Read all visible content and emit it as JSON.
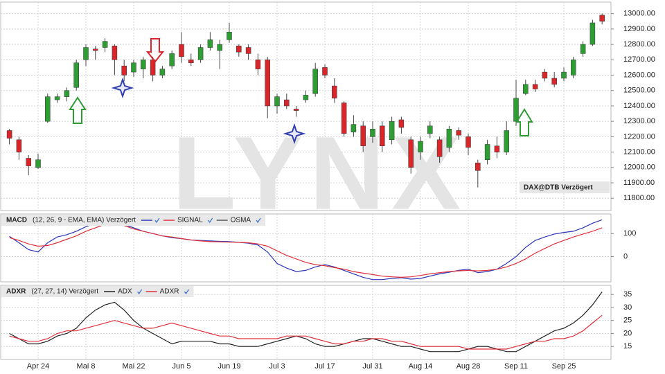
{
  "chart_data": [
    {
      "type": "candlestick",
      "label": "DAX@DTB Verzögert",
      "watermark": "LYNX",
      "up_color": "#2e9e34",
      "down_color": "#d9262b",
      "grid": true,
      "ylim": [
        11720,
        13075
      ],
      "yticks": [
        {
          "value": 11800,
          "label": "11800.00"
        },
        {
          "value": 11900,
          "label": "11900.00"
        },
        {
          "value": 12000,
          "label": "12000.00"
        },
        {
          "value": 12100,
          "label": "12100.00"
        },
        {
          "value": 12200,
          "label": "12200.00"
        },
        {
          "value": 12300,
          "label": "12300.00"
        },
        {
          "value": 12400,
          "label": "12400.00"
        },
        {
          "value": 12500,
          "label": "12500.00"
        },
        {
          "value": 12600,
          "label": "12600.00"
        },
        {
          "value": 12700,
          "label": "12700.00"
        },
        {
          "value": 12800,
          "label": "12800.00"
        },
        {
          "value": 12900,
          "label": "12900.00"
        },
        {
          "value": 13000,
          "label": "13000.00"
        }
      ],
      "open": [
        12240,
        12180,
        12060,
        12000,
        12300,
        12440,
        12460,
        12520,
        12700,
        12770,
        12780,
        12790,
        12660,
        12620,
        12640,
        12700,
        12600,
        12660,
        12800,
        12700,
        12700,
        12780,
        12760,
        12830,
        12790,
        12780,
        12700,
        12700,
        12400,
        12440,
        12380,
        12440,
        12480,
        12650,
        12530,
        12420,
        12230,
        12270,
        12200,
        12270,
        12180,
        12310,
        12180,
        12100,
        12220,
        12180,
        12130,
        12240,
        12200,
        12030,
        12050,
        12140,
        12100,
        12300,
        12480,
        12540,
        12620,
        12580,
        12580,
        12600,
        12740,
        12800,
        12990
      ],
      "high": [
        12250,
        12200,
        12080,
        12090,
        12480,
        12480,
        12520,
        12700,
        12800,
        12790,
        12840,
        12800,
        12700,
        12700,
        12720,
        12720,
        12660,
        12760,
        12880,
        12740,
        12800,
        12880,
        12830,
        12940,
        12800,
        12800,
        12740,
        12720,
        12480,
        12480,
        12400,
        12500,
        12680,
        12670,
        12580,
        12430,
        12340,
        12300,
        12300,
        12300,
        12330,
        12330,
        12200,
        12200,
        12300,
        12200,
        12270,
        12260,
        12220,
        12050,
        12180,
        12200,
        12300,
        12570,
        12570,
        12570,
        12640,
        12620,
        12650,
        12720,
        12820,
        12960,
        13000
      ],
      "low": [
        12150,
        12050,
        11950,
        11990,
        12290,
        12420,
        12430,
        12500,
        12660,
        12700,
        12750,
        12600,
        12560,
        12590,
        12580,
        12560,
        12580,
        12640,
        12680,
        12660,
        12680,
        12760,
        12640,
        12810,
        12720,
        12700,
        12600,
        12320,
        12350,
        12380,
        12330,
        12420,
        12460,
        12580,
        12420,
        12200,
        12200,
        12100,
        12160,
        12100,
        12150,
        12220,
        11960,
        12050,
        12190,
        12030,
        12100,
        12180,
        12080,
        11870,
        12020,
        12060,
        12080,
        12270,
        12470,
        12490,
        12560,
        12520,
        12560,
        12580,
        12720,
        12790,
        12930
      ],
      "close": [
        12190,
        12100,
        12010,
        12050,
        12460,
        12460,
        12500,
        12680,
        12780,
        12760,
        12820,
        12700,
        12600,
        12680,
        12700,
        12600,
        12640,
        12740,
        12720,
        12680,
        12780,
        12830,
        12800,
        12880,
        12750,
        12740,
        12640,
        12400,
        12460,
        12400,
        12370,
        12470,
        12640,
        12600,
        12450,
        12220,
        12280,
        12140,
        12250,
        12140,
        12300,
        12260,
        12000,
        12170,
        12270,
        12070,
        12250,
        12210,
        12130,
        11980,
        12150,
        12100,
        12240,
        12450,
        12540,
        12510,
        12580,
        12540,
        12620,
        12700,
        12800,
        12940,
        12950
      ]
    },
    {
      "type": "line",
      "title": "MACD",
      "subtitle": "(12, 26, 9 - EMA, EMA) Verzögert",
      "grid": true,
      "ylim": [
        -110,
        185
      ],
      "yticks": [
        0,
        100
      ],
      "series": [
        {
          "color": "#2a35b8",
          "values": [
            88,
            60,
            30,
            20,
            60,
            85,
            95,
            110,
            130,
            145,
            150,
            150,
            140,
            125,
            110,
            100,
            90,
            82,
            78,
            72,
            70,
            68,
            66,
            65,
            62,
            58,
            50,
            20,
            -30,
            -50,
            -65,
            -60,
            -45,
            -35,
            -45,
            -60,
            -75,
            -90,
            -100,
            -100,
            -95,
            -92,
            -98,
            -95,
            -85,
            -75,
            -68,
            -60,
            -55,
            -70,
            -65,
            -55,
            -30,
            0,
            40,
            70,
            85,
            98,
            105,
            110,
            125,
            145,
            160
          ]
        },
        {
          "name": "SIGNAL",
          "color": "#e0303a",
          "values": [
            82,
            70,
            55,
            45,
            48,
            60,
            75,
            90,
            110,
            125,
            140,
            145,
            135,
            120,
            110,
            100,
            90,
            85,
            78,
            72,
            68,
            65,
            64,
            63,
            62,
            60,
            55,
            45,
            25,
            5,
            -10,
            -25,
            -35,
            -40,
            -48,
            -55,
            -65,
            -72,
            -78,
            -85,
            -88,
            -90,
            -88,
            -82,
            -75,
            -70,
            -65,
            -62,
            -60,
            -62,
            -60,
            -55,
            -45,
            -30,
            -10,
            15,
            35,
            55,
            70,
            85,
            98,
            110,
            125
          ]
        },
        {
          "name": "OSMA",
          "color": "#555555"
        }
      ]
    },
    {
      "type": "line",
      "title": "ADXR",
      "subtitle": "(27, 27, 14) Verzögert",
      "grid": true,
      "ylim": [
        10,
        38.5
      ],
      "yticks": [
        15,
        20,
        25,
        30,
        35
      ],
      "categories": [
        null,
        null,
        null,
        "Apr 24",
        null,
        null,
        null,
        null,
        "Mai 8",
        null,
        null,
        null,
        null,
        "Mai 22",
        null,
        null,
        null,
        null,
        "Jun 5",
        null,
        null,
        null,
        null,
        "Jun 19",
        null,
        null,
        null,
        null,
        "Jul 3",
        null,
        null,
        null,
        null,
        "Jul 17",
        null,
        null,
        null,
        null,
        "Jul 31",
        null,
        null,
        null,
        null,
        "Aug 14",
        null,
        null,
        null,
        null,
        "Aug 28",
        null,
        null,
        null,
        null,
        "Sep 11",
        null,
        null,
        null,
        null,
        "Sep 25",
        null,
        null,
        null,
        null
      ],
      "series": [
        {
          "name": "ADX",
          "color": "#222222",
          "values": [
            20,
            18,
            16,
            16,
            17,
            19,
            20,
            22,
            26,
            29,
            31,
            32,
            29,
            25,
            22,
            20,
            18,
            16,
            17,
            17,
            17,
            17,
            16,
            16,
            15,
            15,
            15,
            16,
            17,
            18,
            19,
            18,
            16,
            15,
            15,
            16,
            17,
            18,
            18,
            17,
            16,
            15,
            15,
            14,
            13,
            13,
            13,
            13,
            14,
            15,
            15,
            14,
            13,
            13,
            15,
            17,
            19,
            21,
            22,
            24,
            27,
            31,
            36
          ]
        },
        {
          "name": "ADXR",
          "color": "#e0303a",
          "values": [
            19,
            18,
            17,
            17,
            18,
            20,
            21,
            21,
            22,
            23,
            24,
            25,
            24,
            23,
            22,
            22,
            23,
            24,
            23,
            22,
            21,
            20,
            19,
            19,
            18,
            18,
            18,
            18,
            18,
            19,
            19,
            19,
            18,
            17,
            16,
            16,
            17,
            17,
            18,
            18,
            17,
            17,
            16,
            15,
            15,
            15,
            15,
            15,
            14,
            14,
            14,
            14,
            14,
            15,
            16,
            17,
            17,
            18,
            18,
            19,
            21,
            24,
            27
          ]
        }
      ]
    }
  ]
}
